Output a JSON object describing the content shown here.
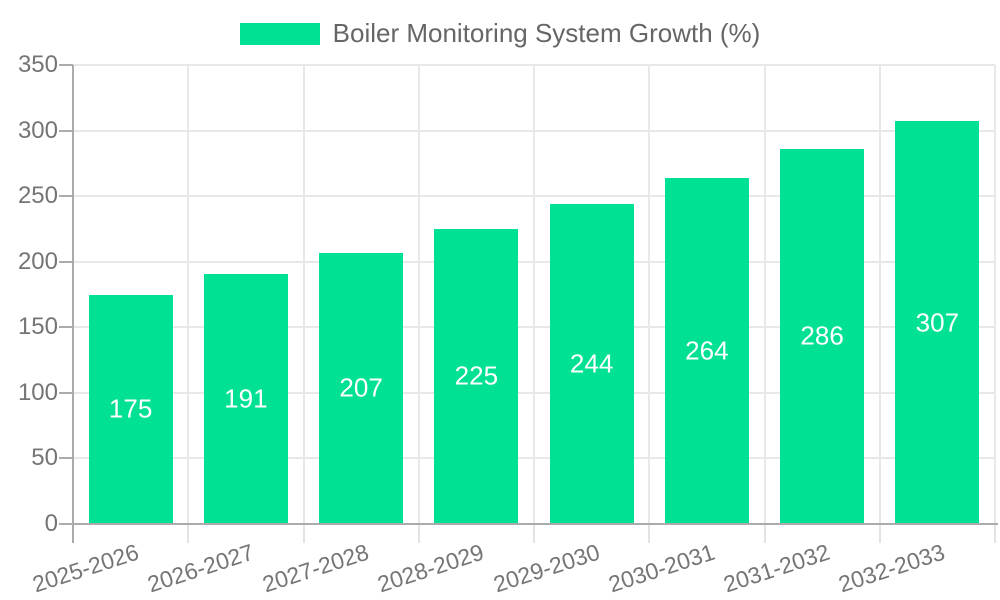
{
  "legend": {
    "label": "Boiler Monitoring System Growth (%)"
  },
  "colors": {
    "bar": "#00E193",
    "bar_label": "#ffffff",
    "axis_line": "#ababab",
    "gridline": "#e8e8e8",
    "axis_label": "#757575",
    "legend_text": "#666666"
  },
  "chart_data": {
    "type": "bar",
    "title": "Boiler Monitoring System Growth (%)",
    "categories": [
      "2025-2026",
      "2026-2027",
      "2027-2028",
      "2028-2029",
      "2029-2030",
      "2030-2031",
      "2031-2032",
      "2032-2033"
    ],
    "values": [
      175,
      191,
      207,
      225,
      244,
      264,
      286,
      307
    ],
    "xlabel": "",
    "ylabel": "",
    "ylim": [
      0,
      350
    ],
    "yticks": [
      0,
      50,
      100,
      150,
      200,
      250,
      300,
      350
    ],
    "grid": true,
    "legend_position": "top",
    "value_labels": "inside-center"
  }
}
